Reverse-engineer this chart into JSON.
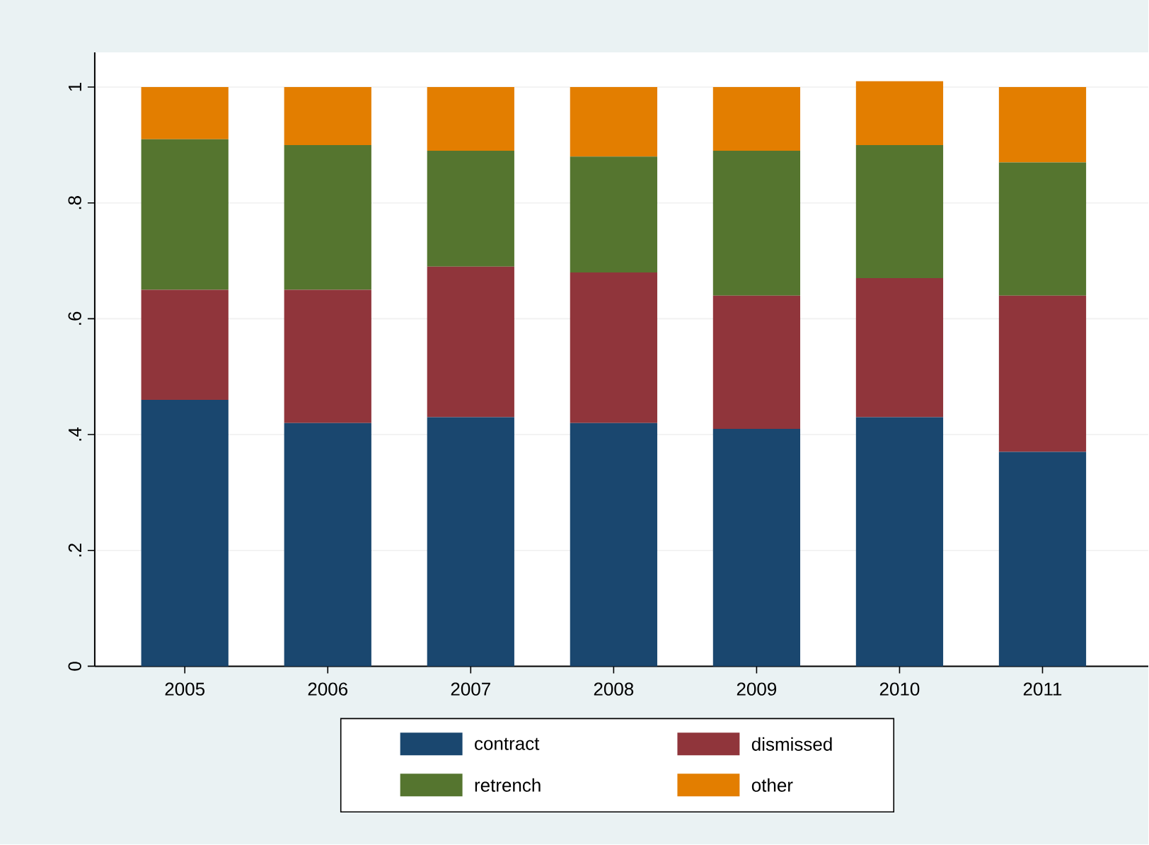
{
  "chart_data": {
    "type": "bar",
    "stacked": true,
    "categories": [
      "2005",
      "2006",
      "2007",
      "2008",
      "2009",
      "2010",
      "2011"
    ],
    "series": [
      {
        "name": "contract",
        "color": "#1a476f",
        "values": [
          0.46,
          0.42,
          0.43,
          0.42,
          0.41,
          0.43,
          0.37
        ]
      },
      {
        "name": "dismissed",
        "color": "#90353b",
        "values": [
          0.19,
          0.23,
          0.26,
          0.26,
          0.23,
          0.24,
          0.27
        ]
      },
      {
        "name": "retrench",
        "color": "#55752f",
        "values": [
          0.26,
          0.25,
          0.2,
          0.2,
          0.25,
          0.23,
          0.23
        ]
      },
      {
        "name": "other",
        "color": "#e37e00",
        "values": [
          0.09,
          0.1,
          0.11,
          0.12,
          0.11,
          0.11,
          0.13
        ]
      }
    ],
    "ylim": [
      0,
      1.06
    ],
    "yticks": [
      0,
      {
        "value": 0.2,
        "label": ".2"
      },
      {
        "value": 0.4,
        "label": ".4"
      },
      {
        "value": 0.6,
        "label": ".6"
      },
      {
        "value": 0.8,
        "label": ".8"
      },
      1
    ],
    "grid": "y",
    "legend": "bottom"
  }
}
